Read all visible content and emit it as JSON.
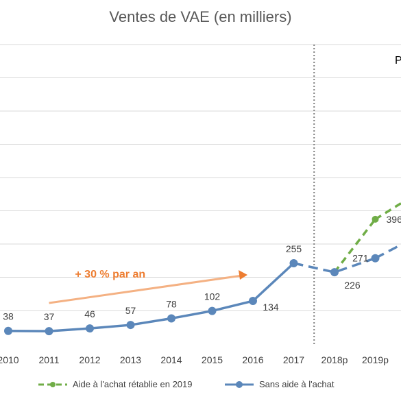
{
  "chart_data": {
    "type": "line",
    "title": "Ventes de VAE (en milliers)",
    "categories": [
      "2010",
      "2011",
      "2012",
      "2013",
      "2014",
      "2015",
      "2016",
      "2017",
      "2018p",
      "2019p"
    ],
    "series": [
      {
        "name": "Aide à l'achat rétablie en 2019",
        "color": "#70AD47",
        "style": "dashed",
        "points": [
          {
            "x": "2018p",
            "y": 226
          },
          {
            "x": "2019p",
            "y": 396
          }
        ],
        "labels": [
          "",
          "396"
        ]
      },
      {
        "name": "Sans aide à l'achat",
        "color": "#5B87BA",
        "values": [
          38,
          37,
          46,
          57,
          78,
          102,
          134,
          255,
          226,
          271
        ],
        "solid_until": "2017",
        "labels": [
          "38",
          "37",
          "46",
          "57",
          "78",
          "102",
          "134",
          "255",
          "226",
          "271"
        ]
      }
    ],
    "annotations": [
      {
        "text": "+ 30 % par an",
        "color": "#ED7D31"
      },
      {
        "text": "P"
      }
    ],
    "forecast_divider_after": "2017",
    "grid": true,
    "legend": "bottom"
  }
}
